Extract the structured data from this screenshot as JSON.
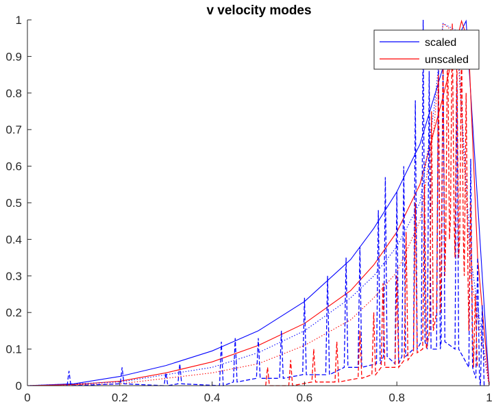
{
  "chart_data": {
    "type": "line",
    "title": "v velocity modes",
    "xlabel": "",
    "ylabel": "",
    "xlim": [
      0,
      1
    ],
    "ylim": [
      0,
      1
    ],
    "xticks": [
      0,
      0.2,
      0.4,
      0.6,
      0.8,
      1
    ],
    "xtick_labels": [
      "0",
      "0.2",
      "0.4",
      "0.6",
      "0.8",
      "1"
    ],
    "yticks": [
      0,
      0.1,
      0.2,
      0.3,
      0.4,
      0.5,
      0.6,
      0.7,
      0.8,
      0.9,
      1
    ],
    "ytick_labels": [
      "0",
      "0.1",
      "0.2",
      "0.3",
      "0.4",
      "0.5",
      "0.6",
      "0.7",
      "0.8",
      "0.9",
      "1"
    ],
    "grid": false,
    "legend_position": "top-right",
    "legend": [
      {
        "label": "scaled",
        "color": "#0000ff"
      },
      {
        "label": "unscaled",
        "color": "#ff0000"
      }
    ],
    "series": [
      {
        "name": "scaled",
        "color": "#0000ff",
        "style": "solid",
        "x": [
          0,
          0.1,
          0.2,
          0.3,
          0.4,
          0.5,
          0.6,
          0.7,
          0.75,
          0.8,
          0.85,
          0.9,
          0.95,
          1.0
        ],
        "y": [
          0.0,
          0.005,
          0.025,
          0.055,
          0.095,
          0.15,
          0.23,
          0.345,
          0.43,
          0.53,
          0.66,
          0.87,
          0.997,
          0.0
        ]
      },
      {
        "name": "unscaled",
        "color": "#ff0000",
        "style": "solid",
        "x": [
          0,
          0.1,
          0.2,
          0.3,
          0.4,
          0.5,
          0.6,
          0.7,
          0.75,
          0.8,
          0.85,
          0.9,
          0.94,
          0.955,
          0.975,
          1.0
        ],
        "y": [
          0.0,
          0.003,
          0.012,
          0.035,
          0.065,
          0.11,
          0.17,
          0.26,
          0.33,
          0.42,
          0.55,
          0.79,
          0.997,
          0.94,
          0.35,
          0.0
        ]
      },
      {
        "color": "#0000ff",
        "style": "dotted",
        "x": [
          0,
          0.2,
          0.4,
          0.5,
          0.6,
          0.7,
          0.75,
          0.8,
          0.85,
          0.88,
          0.9,
          0.93,
          0.96,
          1.0
        ],
        "y": [
          0.0,
          0.01,
          0.05,
          0.09,
          0.15,
          0.24,
          0.3,
          0.38,
          0.5,
          0.75,
          0.99,
          0.97,
          0.35,
          0.0
        ]
      },
      {
        "color": "#ff0000",
        "style": "dotted",
        "x": [
          0,
          0.2,
          0.4,
          0.5,
          0.6,
          0.7,
          0.75,
          0.8,
          0.85,
          0.88,
          0.9,
          0.93,
          0.96,
          1.0
        ],
        "y": [
          0.0,
          0.005,
          0.035,
          0.06,
          0.11,
          0.18,
          0.24,
          0.31,
          0.45,
          0.7,
          0.99,
          0.96,
          0.3,
          0.0
        ]
      },
      {
        "color": "#0000ff",
        "style": "dashed",
        "x": [
          0.09,
          0.205,
          0.3,
          0.33,
          0.42,
          0.45,
          0.5,
          0.55,
          0.6,
          0.65,
          0.69,
          0.72,
          0.76,
          0.775,
          0.8,
          0.815,
          0.84,
          0.857,
          0.87,
          0.89,
          0.9,
          0.93,
          0.96,
          0.975,
          0.985
        ],
        "y": [
          0.04,
          0.05,
          0.035,
          0.06,
          0.12,
          0.13,
          0.13,
          0.15,
          0.24,
          0.3,
          0.35,
          0.38,
          0.48,
          0.57,
          0.53,
          0.6,
          0.78,
          1.0,
          0.86,
          0.88,
          0.92,
          0.85,
          0.62,
          0.35,
          0.22
        ],
        "base": [
          0.0,
          0.005,
          0.0,
          0.005,
          0.0,
          0.01,
          0.02,
          0.02,
          0.03,
          0.03,
          0.05,
          0.05,
          0.06,
          0.08,
          0.06,
          0.08,
          0.1,
          0.12,
          0.1,
          0.1,
          0.12,
          0.1,
          0.05,
          0.02,
          0.0
        ]
      },
      {
        "color": "#ff0000",
        "style": "dashed",
        "x": [
          0.52,
          0.57,
          0.62,
          0.67,
          0.72,
          0.75,
          0.77,
          0.8,
          0.82,
          0.84,
          0.86,
          0.875,
          0.89,
          0.9,
          0.91,
          0.92,
          0.93,
          0.94,
          0.95,
          0.96,
          0.97
        ],
        "y": [
          0.05,
          0.07,
          0.1,
          0.12,
          0.15,
          0.2,
          0.28,
          0.3,
          0.42,
          0.5,
          0.55,
          0.75,
          0.85,
          0.9,
          0.97,
          0.99,
          0.9,
          0.95,
          0.8,
          0.5,
          0.25
        ],
        "base": [
          0.0,
          0.0,
          0.01,
          0.01,
          0.02,
          0.03,
          0.05,
          0.05,
          0.07,
          0.09,
          0.1,
          0.15,
          0.2,
          0.3,
          0.4,
          0.45,
          0.35,
          0.4,
          0.3,
          0.15,
          0.05
        ]
      }
    ]
  }
}
